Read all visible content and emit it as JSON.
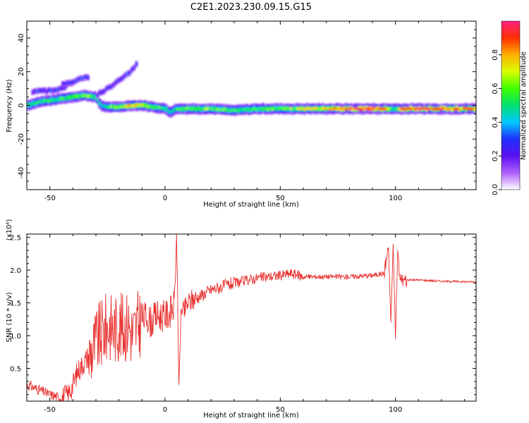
{
  "title": "C2E1.2023.230.09.15.G15",
  "chart_data": [
    {
      "type": "heatmap",
      "xlabel": "Height of straight line (km)",
      "ylabel": "Frequency (Hz)",
      "xlim": [
        -60,
        135
      ],
      "ylim": [
        -50,
        50
      ],
      "x_ticks": [
        "-50",
        "0",
        "50",
        "100"
      ],
      "y_ticks": [
        "40",
        "20",
        "0",
        "-20",
        "-40"
      ],
      "colorbar": {
        "label": "Normalized spectral amplitude",
        "range": [
          0.0,
          1.0
        ],
        "ticks": [
          "0.0",
          "0.2",
          "0.4",
          "0.6",
          "0.8"
        ],
        "colormap": [
          "#ffffff",
          "#b060ff",
          "#5a10f0",
          "#2030ff",
          "#00c8ff",
          "#00e070",
          "#40ff00",
          "#d8ff00",
          "#ffb000",
          "#ff3000",
          "#ff2080"
        ]
      },
      "ridge": {
        "x": [
          -60,
          -55,
          -50,
          -45,
          -40,
          -35,
          -30,
          -28,
          -25,
          -20,
          -15,
          -10,
          -5,
          0,
          2,
          5,
          10,
          20,
          30,
          40,
          50,
          60,
          70,
          80,
          90,
          95,
          98,
          100,
          103,
          110,
          120,
          135
        ],
        "freq": [
          0,
          2,
          3,
          4,
          5,
          6,
          5,
          0,
          -1,
          -1,
          0,
          0,
          -1,
          -2,
          -4,
          -2,
          -2,
          -2,
          -3,
          -2,
          -2,
          -2,
          -2,
          -2,
          -2,
          -2,
          -2,
          -2,
          -2,
          -2,
          -2,
          -2
        ],
        "amp": [
          0.5,
          0.55,
          0.5,
          0.55,
          0.6,
          0.65,
          0.5,
          0.45,
          0.55,
          0.6,
          0.8,
          0.7,
          0.6,
          0.5,
          0.45,
          0.55,
          0.6,
          0.6,
          0.55,
          0.6,
          0.6,
          0.7,
          0.75,
          0.9,
          0.95,
          0.85,
          0.6,
          0.5,
          0.95,
          0.9,
          0.85,
          0.8
        ]
      },
      "secondary_tracks": [
        {
          "x": [
            -58,
            -50,
            -45,
            -40
          ],
          "freq": [
            8,
            9,
            10,
            14
          ]
        },
        {
          "x": [
            -45,
            -38,
            -33
          ],
          "freq": [
            12,
            15,
            17
          ]
        },
        {
          "x": [
            -30,
            -25,
            -20,
            -15,
            -12
          ],
          "freq": [
            6,
            10,
            15,
            20,
            25
          ]
        }
      ]
    },
    {
      "type": "line",
      "xlabel": "Height of straight line (km)",
      "ylabel": "SNR (10 * v/v)",
      "ylabel_multiplier": "(x10⁴)",
      "xlim": [
        -60,
        135
      ],
      "ylim": [
        0,
        2.55
      ],
      "x_ticks": [
        "-50",
        "0",
        "50",
        "100"
      ],
      "y_ticks": [
        "0.5",
        "1.0",
        "1.5",
        "2.0",
        "2.5"
      ],
      "color": "#e8302e",
      "series": [
        {
          "x": [
            -60,
            -55,
            -50,
            -45,
            -42,
            -40,
            -38,
            -35,
            -32,
            -30,
            -28,
            -26,
            -24,
            -22,
            -20,
            -18,
            -16,
            -14,
            -12,
            -10,
            -8,
            -6,
            -4,
            -2,
            0,
            2,
            4,
            5,
            6,
            7,
            8,
            10,
            12,
            15,
            20,
            25,
            30,
            40,
            50,
            55,
            60,
            70,
            80,
            90,
            95,
            97,
            98,
            99,
            100,
            101,
            102,
            104,
            110,
            120,
            135
          ],
          "y": [
            0.25,
            0.18,
            0.1,
            0.05,
            0.1,
            0.25,
            0.45,
            0.6,
            0.75,
            0.9,
            1.0,
            1.1,
            1.15,
            1.1,
            1.15,
            1.1,
            1.2,
            1.0,
            1.15,
            1.25,
            1.3,
            1.2,
            1.3,
            1.3,
            1.3,
            1.35,
            1.45,
            2.55,
            0.25,
            1.4,
            1.35,
            1.5,
            1.55,
            1.6,
            1.7,
            1.75,
            1.8,
            1.88,
            1.92,
            1.95,
            1.9,
            1.9,
            1.9,
            1.92,
            1.95,
            2.35,
            1.2,
            2.4,
            0.95,
            2.3,
            1.85,
            1.85,
            1.85,
            1.83,
            1.82
          ]
        }
      ]
    }
  ]
}
